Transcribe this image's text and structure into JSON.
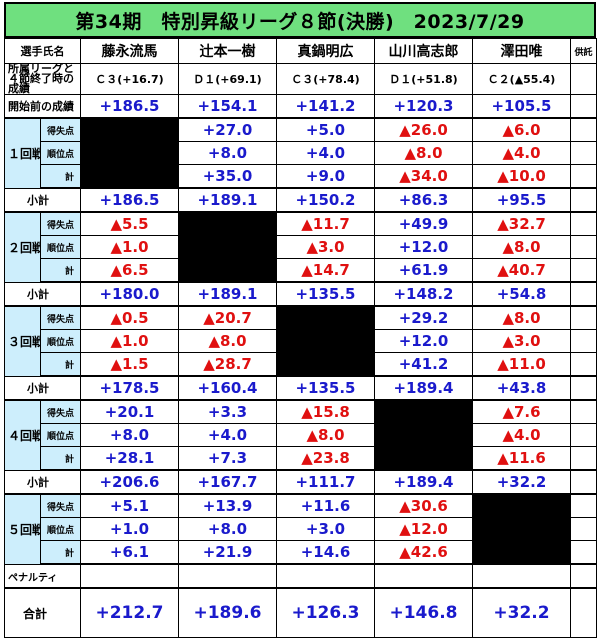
{
  "title": "第34期　特別昇級リーグ８節(決勝)　2023/7/29",
  "header": {
    "name_label": "選手氏名",
    "players": [
      "藤永流馬",
      "辻本一樹",
      "真鍋明広",
      "山川高志郎",
      "澤田唯"
    ],
    "remarks_label": "供託"
  },
  "league_row": {
    "label_line1": "所属リーグと",
    "label_line2": "４節終了時の成績",
    "values": [
      "Ｃ３(+16.7)",
      "Ｄ１(+69.1)",
      "Ｃ３(+78.4)",
      "Ｄ１(+51.8)",
      "Ｃ２(▲55.4)"
    ]
  },
  "start_row": {
    "label": "開始前の成績",
    "values": [
      "+186.5",
      "+154.1",
      "+141.2",
      "+120.3",
      "+105.5"
    ]
  },
  "sub_labels": [
    "得失点",
    "順位点",
    "計"
  ],
  "subtotal_label": "小計",
  "rounds": [
    {
      "label": "１回戦",
      "rows": [
        [
          "",
          "+27.0",
          "+5.0",
          "▲26.0",
          "▲6.0"
        ],
        [
          "",
          "+8.0",
          "+4.0",
          "▲8.0",
          "▲4.0"
        ],
        [
          "",
          "+35.0",
          "+9.0",
          "▲34.0",
          "▲10.0"
        ]
      ],
      "subtotal": [
        "+186.5",
        "+189.1",
        "+150.2",
        "+86.3",
        "+95.5"
      ]
    },
    {
      "label": "２回戦",
      "rows": [
        [
          "▲5.5",
          "",
          "▲11.7",
          "+49.9",
          "▲32.7"
        ],
        [
          "▲1.0",
          "",
          "▲3.0",
          "+12.0",
          "▲8.0"
        ],
        [
          "▲6.5",
          "",
          "▲14.7",
          "+61.9",
          "▲40.7"
        ]
      ],
      "subtotal": [
        "+180.0",
        "+189.1",
        "+135.5",
        "+148.2",
        "+54.8"
      ]
    },
    {
      "label": "３回戦",
      "rows": [
        [
          "▲0.5",
          "▲20.7",
          "",
          "+29.2",
          "▲8.0"
        ],
        [
          "▲1.0",
          "▲8.0",
          "",
          "+12.0",
          "▲3.0"
        ],
        [
          "▲1.5",
          "▲28.7",
          "",
          "+41.2",
          "▲11.0"
        ]
      ],
      "subtotal": [
        "+178.5",
        "+160.4",
        "+135.5",
        "+189.4",
        "+43.8"
      ]
    },
    {
      "label": "４回戦",
      "rows": [
        [
          "+20.1",
          "+3.3",
          "▲15.8",
          "",
          "▲7.6"
        ],
        [
          "+8.0",
          "+4.0",
          "▲8.0",
          "",
          "▲4.0"
        ],
        [
          "+28.1",
          "+7.3",
          "▲23.8",
          "",
          "▲11.6"
        ]
      ],
      "subtotal": [
        "+206.6",
        "+167.7",
        "+111.7",
        "+189.4",
        "+32.2"
      ]
    },
    {
      "label": "５回戦",
      "rows": [
        [
          "+5.1",
          "+13.9",
          "+11.6",
          "▲30.6",
          ""
        ],
        [
          "+1.0",
          "+8.0",
          "+3.0",
          "▲12.0",
          ""
        ],
        [
          "+6.1",
          "+21.9",
          "+14.6",
          "▲42.6",
          ""
        ]
      ],
      "subtotal": null
    }
  ],
  "penalty_label": "ペナルティ",
  "total_label": "合計",
  "totals": [
    "+212.7",
    "+189.6",
    "+126.3",
    "+146.8",
    "+32.2"
  ],
  "colors": {
    "title_bg": "#6fe07f",
    "round_bg": "#cdeefc",
    "positive": "#1a1acc",
    "negative": "#e01010"
  }
}
